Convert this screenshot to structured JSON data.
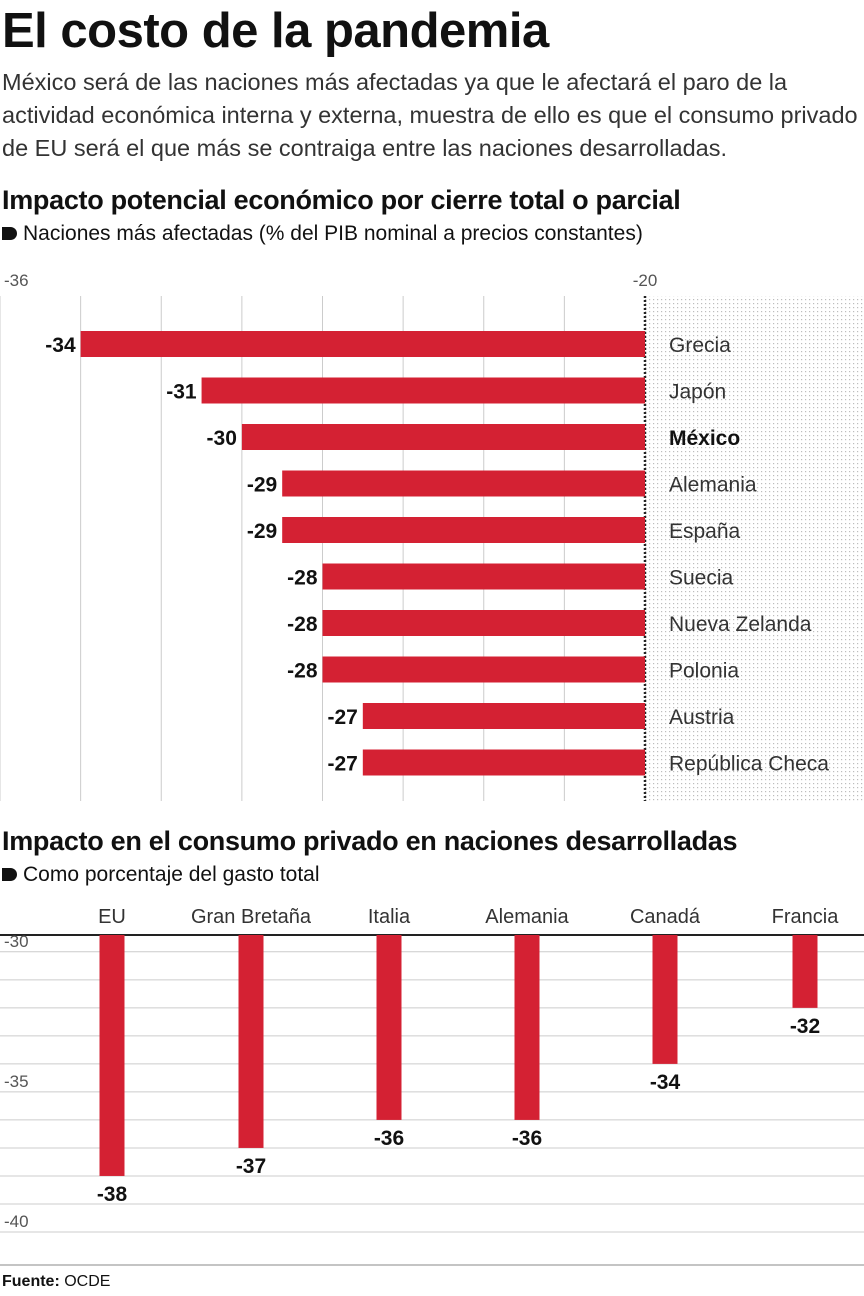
{
  "header": {
    "title": "El costo de la pandemia",
    "subtitle": "México será de las naciones más afectadas ya que le afectará el paro de la actividad económica interna y externa, muestra de ello es que el consumo privado de EU será el que más se contraiga entre las naciones desarrolladas."
  },
  "section1": {
    "title": "Impacto potencial económico por cierre total o parcial",
    "subtitle": "Naciones más afectadas (% del PIB nominal a precios constantes)"
  },
  "section2": {
    "title": "Impacto en el consumo privado en naciones desarrolladas",
    "subtitle": "Como porcentaje del gasto total"
  },
  "footer": {
    "source_label": "Fuente:",
    "source_value": "OCDE"
  },
  "colors": {
    "bar": "#d42133",
    "text": "#111111",
    "grid": "#cccccc"
  },
  "chart_data": [
    {
      "type": "bar",
      "orientation": "horizontal",
      "categories": [
        "Grecia",
        "Japón",
        "México",
        "Alemania",
        "España",
        "Suecia",
        "Nueva Zelanda",
        "Polonia",
        "Austria",
        "República Checa"
      ],
      "highlight": "México",
      "values": [
        -34,
        -31,
        -30,
        -29,
        -29,
        -28,
        -28,
        -28,
        -27,
        -27
      ],
      "data_labels": [
        "-34",
        "-31",
        "-30",
        "-29",
        "-29",
        "-28",
        "-28",
        "-28",
        "-27",
        "-27"
      ],
      "xlim": [
        -36,
        -20
      ],
      "tick_labels": [
        "-36",
        "-20"
      ],
      "grid": true
    },
    {
      "type": "bar",
      "orientation": "vertical",
      "categories": [
        "EU",
        "Gran Bretaña",
        "Italia",
        "Alemania",
        "Canadá",
        "Francia"
      ],
      "values": [
        -38,
        -37,
        -36,
        -36,
        -34,
        -32
      ],
      "data_labels": [
        "-38",
        "-37",
        "-36",
        "-36",
        "-34",
        "-32"
      ],
      "ylim": [
        -40,
        -29.4
      ],
      "tick_labels": [
        "-30",
        "-35",
        "-40"
      ],
      "grid": true
    }
  ]
}
